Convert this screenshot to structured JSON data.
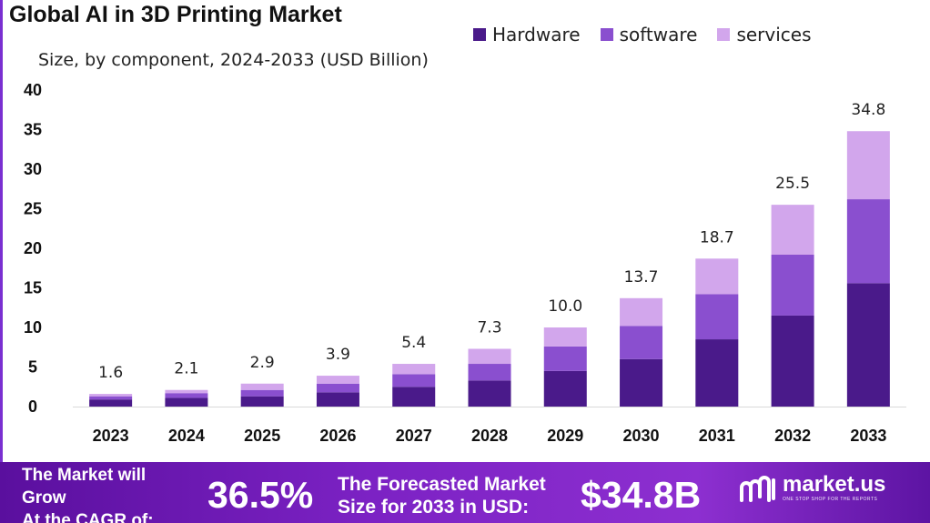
{
  "header": {
    "title": "Global AI in 3D Printing Market",
    "subtitle": "Size, by component, 2024-2033 (USD Billion)"
  },
  "chart_data": {
    "type": "bar",
    "stacked": true,
    "categories": [
      "2023",
      "2024",
      "2025",
      "2026",
      "2027",
      "2028",
      "2029",
      "2030",
      "2031",
      "2032",
      "2033"
    ],
    "series": [
      {
        "name": "Hardware",
        "color": "#4a1a8a",
        "values": [
          0.9,
          1.1,
          1.3,
          1.8,
          2.5,
          3.3,
          4.5,
          6.0,
          8.5,
          11.5,
          15.6
        ]
      },
      {
        "name": "software",
        "color": "#8a4fcf",
        "values": [
          0.4,
          0.6,
          0.8,
          1.1,
          1.6,
          2.1,
          3.1,
          4.2,
          5.7,
          7.7,
          10.6
        ]
      },
      {
        "name": "services",
        "color": "#d2a6ec",
        "values": [
          0.3,
          0.4,
          0.8,
          1.0,
          1.3,
          1.9,
          2.4,
          3.5,
          4.5,
          6.3,
          8.6
        ]
      }
    ],
    "totals": [
      "1.6",
      "2.1",
      "2.9",
      "3.9",
      "5.4",
      "7.3",
      "10.0",
      "13.7",
      "18.7",
      "25.5",
      "34.8"
    ],
    "yticks": [
      "0",
      "5",
      "10",
      "15",
      "20",
      "25",
      "30",
      "35",
      "40"
    ],
    "ylim": [
      0,
      40
    ],
    "grid": false,
    "legend_position": "top-right"
  },
  "footer": {
    "cagr_label_lines": [
      "The Market will",
      "Grow",
      "At the CAGR of:"
    ],
    "cagr_value": "36.5%",
    "forecast_label_lines": [
      "The Forecasted Market",
      "Size for 2033 in USD:"
    ],
    "forecast_value": "$34.8B",
    "brand": {
      "name": "market.us",
      "tagline": "ONE STOP SHOP FOR THE REPORTS",
      "icon": "market-us-logo-icon"
    }
  }
}
